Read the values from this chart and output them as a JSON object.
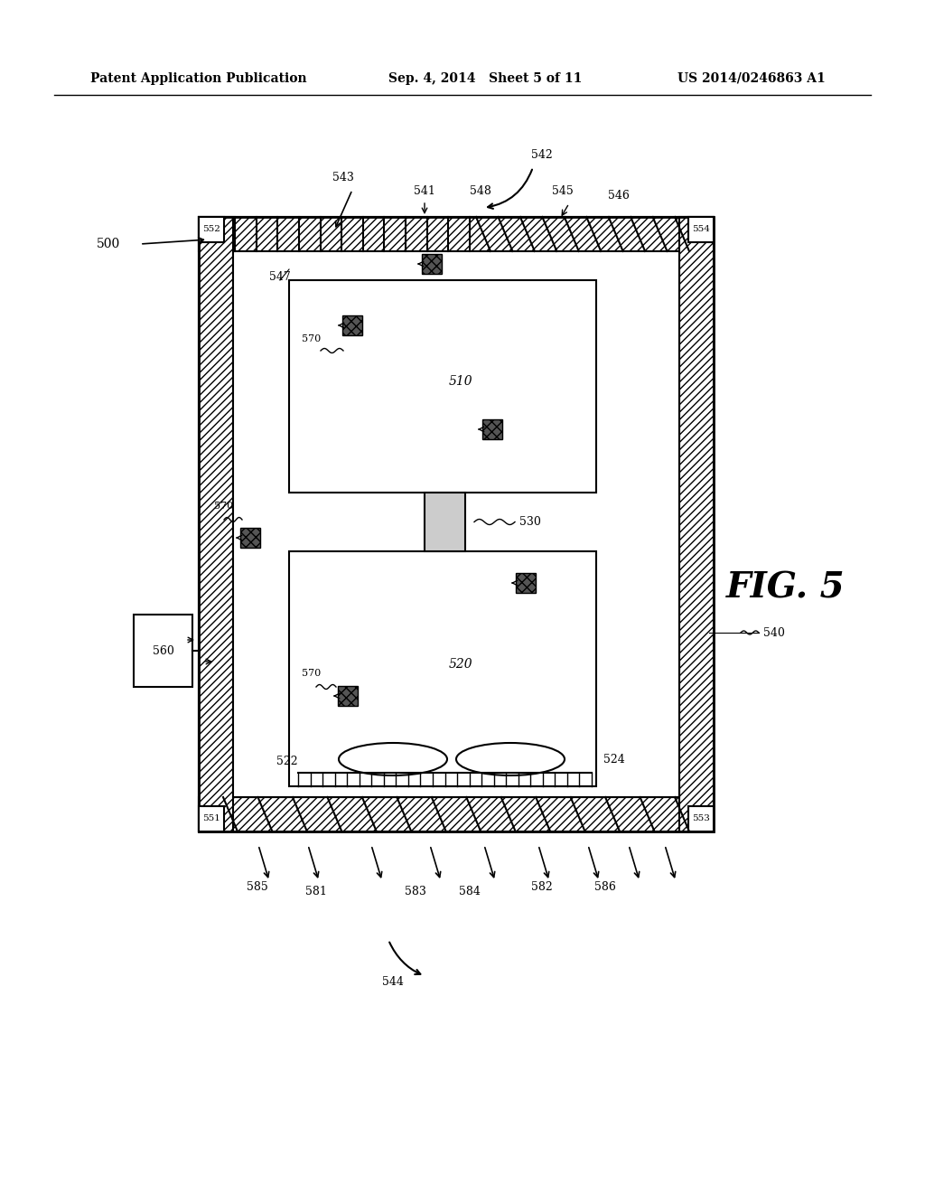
{
  "title_left": "Patent Application Publication",
  "title_mid": "Sep. 4, 2014   Sheet 5 of 11",
  "title_right": "US 2014/0246863 A1",
  "fig_label": "FIG. 5",
  "bg_color": "#ffffff",
  "line_color": "#000000",
  "hatch_color": "#000000",
  "gray_color": "#aaaaaa",
  "label_500": "500",
  "label_510": "510",
  "label_520": "520",
  "label_522": "522",
  "label_524": "524",
  "label_530": "530",
  "label_540": "540",
  "label_541": "541",
  "label_542": "542",
  "label_543": "543",
  "label_544": "544",
  "label_545": "545",
  "label_546": "546",
  "label_547": "547",
  "label_548": "548",
  "label_551": "551",
  "label_552": "552",
  "label_553": "553",
  "label_554": "554",
  "label_560": "560",
  "label_570": "570",
  "label_581": "581",
  "label_582": "582",
  "label_583": "583",
  "label_584": "584",
  "label_585": "585",
  "label_586": "586"
}
